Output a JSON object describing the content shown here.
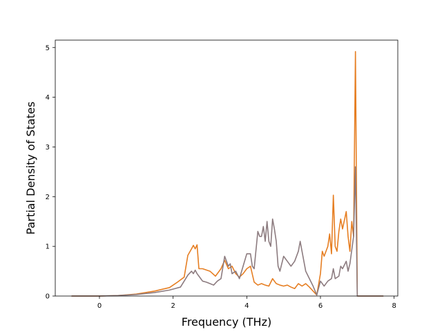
{
  "chart_data": {
    "type": "line",
    "title": "",
    "xlabel": "Frequency (THz)",
    "ylabel": "Partial Density of States",
    "xlim": [
      -1.2,
      8.1
    ],
    "ylim": [
      0,
      5.15
    ],
    "xticks": [
      0,
      2,
      4,
      6,
      8
    ],
    "yticks": [
      0,
      1,
      2,
      3,
      4,
      5
    ],
    "xtick_labels": [
      "0",
      "2",
      "4",
      "6",
      "8"
    ],
    "ytick_labels": [
      "0",
      "1",
      "2",
      "3",
      "4",
      "5"
    ],
    "grid": false,
    "legend": false,
    "series": [
      {
        "color": "#e67e22",
        "points": [
          [
            -0.75,
            0
          ],
          [
            0,
            0
          ],
          [
            0.5,
            0.01
          ],
          [
            1.0,
            0.04
          ],
          [
            1.5,
            0.1
          ],
          [
            1.9,
            0.17
          ],
          [
            2.1,
            0.27
          ],
          [
            2.3,
            0.38
          ],
          [
            2.4,
            0.82
          ],
          [
            2.5,
            0.95
          ],
          [
            2.55,
            1.02
          ],
          [
            2.6,
            0.95
          ],
          [
            2.65,
            1.03
          ],
          [
            2.7,
            0.55
          ],
          [
            2.8,
            0.55
          ],
          [
            3.0,
            0.5
          ],
          [
            3.15,
            0.4
          ],
          [
            3.3,
            0.55
          ],
          [
            3.4,
            0.72
          ],
          [
            3.5,
            0.55
          ],
          [
            3.6,
            0.6
          ],
          [
            3.7,
            0.45
          ],
          [
            3.8,
            0.38
          ],
          [
            3.9,
            0.45
          ],
          [
            4.0,
            0.55
          ],
          [
            4.1,
            0.6
          ],
          [
            4.2,
            0.28
          ],
          [
            4.3,
            0.22
          ],
          [
            4.4,
            0.25
          ],
          [
            4.5,
            0.22
          ],
          [
            4.6,
            0.2
          ],
          [
            4.7,
            0.35
          ],
          [
            4.8,
            0.25
          ],
          [
            4.9,
            0.22
          ],
          [
            5.0,
            0.2
          ],
          [
            5.1,
            0.22
          ],
          [
            5.2,
            0.18
          ],
          [
            5.3,
            0.15
          ],
          [
            5.4,
            0.25
          ],
          [
            5.5,
            0.2
          ],
          [
            5.6,
            0.25
          ],
          [
            5.7,
            0.18
          ],
          [
            5.8,
            0.1
          ],
          [
            5.9,
            0.02
          ],
          [
            6.0,
            0.45
          ],
          [
            6.05,
            0.9
          ],
          [
            6.1,
            0.8
          ],
          [
            6.2,
            1.0
          ],
          [
            6.25,
            1.25
          ],
          [
            6.3,
            0.85
          ],
          [
            6.35,
            2.03
          ],
          [
            6.4,
            1.0
          ],
          [
            6.45,
            0.9
          ],
          [
            6.5,
            1.3
          ],
          [
            6.55,
            1.55
          ],
          [
            6.6,
            1.35
          ],
          [
            6.7,
            1.7
          ],
          [
            6.75,
            1.2
          ],
          [
            6.8,
            0.9
          ],
          [
            6.85,
            1.5
          ],
          [
            6.9,
            1.2
          ],
          [
            6.95,
            4.92
          ],
          [
            7.0,
            0
          ],
          [
            7.7,
            0
          ]
        ]
      },
      {
        "color": "#8c7b7f",
        "points": [
          [
            -0.75,
            0
          ],
          [
            0,
            0
          ],
          [
            0.5,
            0.01
          ],
          [
            1.0,
            0.03
          ],
          [
            1.5,
            0.07
          ],
          [
            1.9,
            0.12
          ],
          [
            2.2,
            0.18
          ],
          [
            2.3,
            0.3
          ],
          [
            2.4,
            0.42
          ],
          [
            2.5,
            0.5
          ],
          [
            2.55,
            0.45
          ],
          [
            2.6,
            0.52
          ],
          [
            2.65,
            0.45
          ],
          [
            2.7,
            0.4
          ],
          [
            2.8,
            0.3
          ],
          [
            2.9,
            0.28
          ],
          [
            3.0,
            0.25
          ],
          [
            3.1,
            0.22
          ],
          [
            3.2,
            0.3
          ],
          [
            3.3,
            0.35
          ],
          [
            3.4,
            0.8
          ],
          [
            3.5,
            0.6
          ],
          [
            3.55,
            0.65
          ],
          [
            3.6,
            0.45
          ],
          [
            3.7,
            0.5
          ],
          [
            3.8,
            0.35
          ],
          [
            3.9,
            0.6
          ],
          [
            4.0,
            0.85
          ],
          [
            4.1,
            0.85
          ],
          [
            4.15,
            0.6
          ],
          [
            4.2,
            0.55
          ],
          [
            4.3,
            1.3
          ],
          [
            4.35,
            1.2
          ],
          [
            4.4,
            1.2
          ],
          [
            4.45,
            1.4
          ],
          [
            4.5,
            1.1
          ],
          [
            4.55,
            1.5
          ],
          [
            4.6,
            1.1
          ],
          [
            4.65,
            1.0
          ],
          [
            4.7,
            1.55
          ],
          [
            4.75,
            1.35
          ],
          [
            4.8,
            1.1
          ],
          [
            4.85,
            0.6
          ],
          [
            4.9,
            0.5
          ],
          [
            5.0,
            0.8
          ],
          [
            5.1,
            0.7
          ],
          [
            5.2,
            0.6
          ],
          [
            5.3,
            0.7
          ],
          [
            5.4,
            0.9
          ],
          [
            5.45,
            1.1
          ],
          [
            5.5,
            0.9
          ],
          [
            5.6,
            0.5
          ],
          [
            5.7,
            0.35
          ],
          [
            5.8,
            0.2
          ],
          [
            5.9,
            0.02
          ],
          [
            6.0,
            0.3
          ],
          [
            6.1,
            0.2
          ],
          [
            6.2,
            0.3
          ],
          [
            6.3,
            0.35
          ],
          [
            6.35,
            0.55
          ],
          [
            6.4,
            0.35
          ],
          [
            6.5,
            0.4
          ],
          [
            6.55,
            0.6
          ],
          [
            6.6,
            0.55
          ],
          [
            6.7,
            0.7
          ],
          [
            6.75,
            0.5
          ],
          [
            6.8,
            0.65
          ],
          [
            6.9,
            1.2
          ],
          [
            6.95,
            2.6
          ],
          [
            7.0,
            0
          ],
          [
            7.7,
            0
          ]
        ]
      }
    ]
  }
}
